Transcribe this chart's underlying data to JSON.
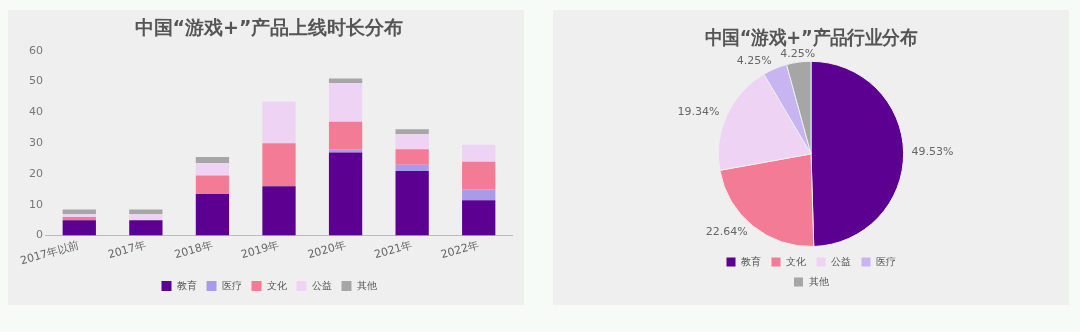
{
  "chart_data": [
    {
      "type": "bar",
      "title": "中国“游戏+”产品上线时长分布",
      "stacked": true,
      "categories": [
        "2017年以前",
        "2017年",
        "2018年",
        "2019年",
        "2020年",
        "2021年",
        "2022年"
      ],
      "series": [
        {
          "name": "教育",
          "color": "#5b0090",
          "values": [
            5,
            5,
            13.5,
            16,
            27,
            21,
            11.5
          ]
        },
        {
          "name": "医疗",
          "color": "#a99be8",
          "values": [
            0,
            0,
            0,
            0,
            1,
            2,
            3.5
          ]
        },
        {
          "name": "文化",
          "color": "#f47b95",
          "values": [
            1,
            0,
            6,
            14,
            9,
            5,
            9
          ]
        },
        {
          "name": "公益",
          "color": "#eed3f5",
          "values": [
            1,
            2,
            4,
            13.5,
            12.5,
            5,
            5.5
          ]
        },
        {
          "name": "其他",
          "color": "#a6a6a6",
          "values": [
            1.5,
            1.5,
            2,
            0,
            1.5,
            1.5,
            0
          ]
        }
      ],
      "ylim": [
        0,
        60
      ],
      "yticks": [
        0,
        10,
        20,
        30,
        40,
        50,
        60
      ],
      "grid": false,
      "legend": "bottom"
    },
    {
      "type": "pie",
      "title": "中国“游戏+”产品行业分布",
      "categories": [
        "教育",
        "文化",
        "公益",
        "医疗",
        "其他"
      ],
      "values": [
        49.53,
        22.64,
        19.34,
        4.25,
        4.25
      ],
      "colors": [
        "#5b0090",
        "#f47b95",
        "#eed3f5",
        "#c8b4f0",
        "#a6a6a6"
      ],
      "value_labels": [
        "49.53%",
        "22.64%",
        "19.34%",
        "4.25%",
        "4.25%"
      ],
      "legend": "bottom"
    }
  ]
}
